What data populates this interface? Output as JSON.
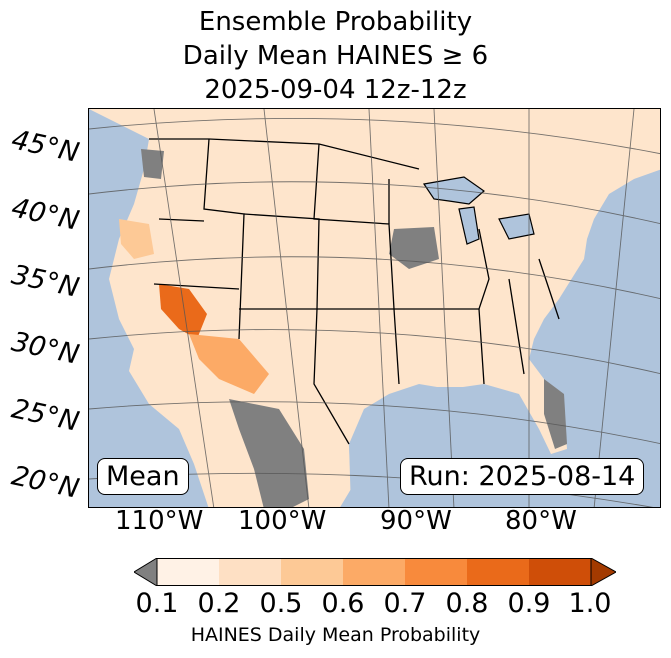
{
  "title": {
    "line1": "Ensemble Probability",
    "line2": "Daily Mean HAINES ≥ 6",
    "line3": "2025-09-04 12z-12z"
  },
  "map": {
    "lat_labels": [
      "45°N",
      "40°N",
      "35°N",
      "30°N",
      "25°N",
      "20°N"
    ],
    "lon_labels": [
      "110°W",
      "100°W",
      "90°W",
      "80°W"
    ],
    "left_box": "Mean",
    "right_box": "Run: 2025-08-14",
    "colors": {
      "ocean": "#afc4dc",
      "missing": "#808080",
      "border": "#000000"
    }
  },
  "colorbar": {
    "ticks": [
      "0.1",
      "0.2",
      "0.5",
      "0.6",
      "0.7",
      "0.8",
      "0.9",
      "1.0"
    ],
    "label": "HAINES Daily Mean Probability",
    "under_color": "#808080",
    "over_color": "#a33a00",
    "colors": [
      "#fff2e6",
      "#fee0c4",
      "#fdc996",
      "#fcaa66",
      "#f88a3c",
      "#ea6a1a",
      "#cf4e08"
    ]
  }
}
